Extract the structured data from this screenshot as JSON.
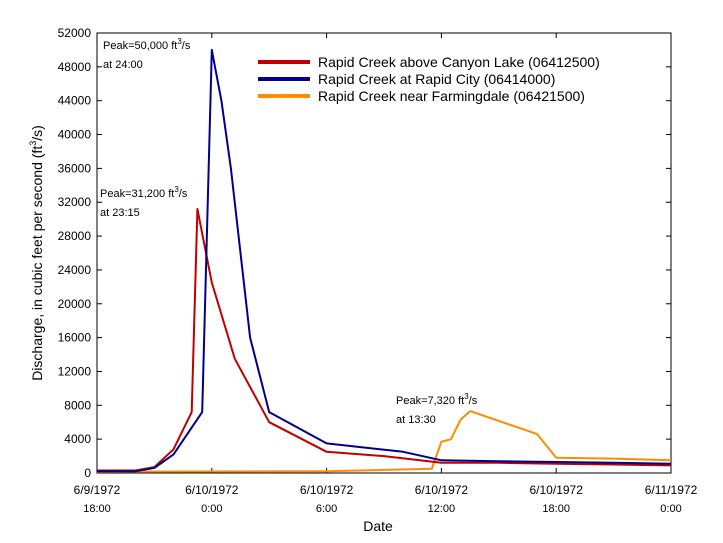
{
  "chart_data": {
    "type": "line",
    "title": "",
    "xlabel": "Date",
    "ylabel": "Discharge, in cubic feet per second (ft³/s)",
    "ylabel_parts": [
      "Discharge, in cubic feet per second (ft",
      "3",
      "/s)"
    ],
    "ylim": [
      0,
      52000
    ],
    "yticks": [
      0,
      4000,
      8000,
      12000,
      16000,
      20000,
      24000,
      28000,
      32000,
      36000,
      40000,
      44000,
      48000,
      52000
    ],
    "xlim": [
      "1972-06-09 18:00",
      "1972-06-11 00:00"
    ],
    "xticks": [
      {
        "x": "1972-06-09 18:00",
        "date": "6/9/1972",
        "time": "18:00"
      },
      {
        "x": "1972-06-10 00:00",
        "date": "6/10/1972",
        "time": "0:00"
      },
      {
        "x": "1972-06-10 06:00",
        "date": "6/10/1972",
        "time": "6:00"
      },
      {
        "x": "1972-06-10 12:00",
        "date": "6/10/1972",
        "time": "12:00"
      },
      {
        "x": "1972-06-10 18:00",
        "date": "6/10/1972",
        "time": "18:00"
      },
      {
        "x": "1972-06-11 00:00",
        "date": "6/11/1972",
        "time": "0:00"
      }
    ],
    "legend_position": "top-right",
    "series": [
      {
        "name": "Rapid Creek above Canyon Lake (06412500)",
        "color": "#c00000",
        "x": [
          "1972-06-09 18:00",
          "1972-06-09 20:00",
          "1972-06-09 21:00",
          "1972-06-09 22:00",
          "1972-06-09 22:57",
          "1972-06-09 23:15",
          "1972-06-10 00:00",
          "1972-06-10 01:12",
          "1972-06-10 03:00",
          "1972-06-10 06:00",
          "1972-06-10 09:00",
          "1972-06-10 12:00",
          "1972-06-10 15:00",
          "1972-06-10 18:00",
          "1972-06-10 21:00",
          "1972-06-11 00:00"
        ],
        "y": [
          300,
          300,
          700,
          2800,
          7200,
          31200,
          22500,
          13500,
          6000,
          2500,
          2000,
          1200,
          1200,
          1100,
          1000,
          900
        ]
      },
      {
        "name": "Rapid Creek at Rapid City (06414000)",
        "color": "#00008b",
        "x": [
          "1972-06-09 18:00",
          "1972-06-09 20:00",
          "1972-06-09 21:00",
          "1972-06-09 22:00",
          "1972-06-09 23:30",
          "1972-06-10 00:00",
          "1972-06-10 00:30",
          "1972-06-10 01:00",
          "1972-06-10 02:00",
          "1972-06-10 03:00",
          "1972-06-10 06:00",
          "1972-06-10 10:00",
          "1972-06-10 12:00",
          "1972-06-10 15:00",
          "1972-06-10 18:00",
          "1972-06-10 21:00",
          "1972-06-11 00:00"
        ],
        "y": [
          200,
          200,
          600,
          2200,
          7200,
          50000,
          44000,
          36000,
          16000,
          7200,
          3500,
          2500,
          1500,
          1400,
          1300,
          1200,
          1100
        ]
      },
      {
        "name": "Rapid Creek near Farmingdale (06421500)",
        "color": "#ff8c00",
        "x": [
          "1972-06-09 18:00",
          "1972-06-10 06:00",
          "1972-06-10 11:30",
          "1972-06-10 12:00",
          "1972-06-10 12:30",
          "1972-06-10 13:00",
          "1972-06-10 13:30",
          "1972-06-10 17:00",
          "1972-06-10 18:00",
          "1972-06-10 21:00",
          "1972-06-11 00:00"
        ],
        "y": [
          150,
          200,
          500,
          3700,
          4000,
          6300,
          7320,
          4600,
          1800,
          1700,
          1500
        ]
      }
    ],
    "annotations": [
      {
        "text": "Peak=50,000 ft³/s",
        "line1_pre": "Peak=50,000 ft",
        "sup": "3",
        "line1_post": "/s",
        "line2": "at 24:00"
      },
      {
        "text": "Peak=31,200 ft³/s",
        "line1_pre": "Peak=31,200 ft",
        "sup": "3",
        "line1_post": "/s",
        "line2": "at 23:15"
      },
      {
        "text": "Peak=7,320 ft³/s",
        "line1_pre": "Peak=7,320 ft",
        "sup": "3",
        "line1_post": "/s",
        "line2": "at 13:30"
      }
    ]
  }
}
